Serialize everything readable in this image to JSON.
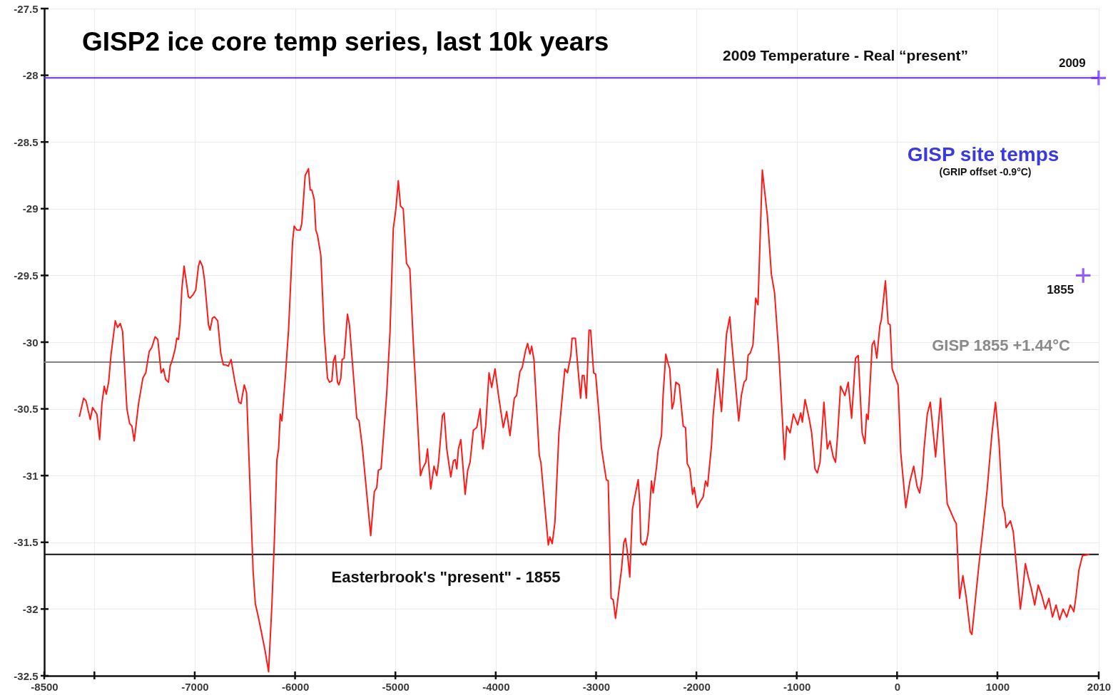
{
  "chart_data": {
    "type": "line",
    "title": "GISP2 ice core temp series, last 10k years",
    "xlim": [
      -8500,
      2010
    ],
    "ylim": [
      -32.5,
      -27.5
    ],
    "xticks": [
      -8500,
      {
        "value": -8000,
        "label": null
      },
      -7000,
      -6000,
      -5000,
      -4000,
      -3000,
      -2000,
      -1000,
      0,
      1000,
      2010
    ],
    "yticks": [
      -32.5,
      -32,
      -31.5,
      -31,
      -30.5,
      -30,
      -29.5,
      -29,
      -28.5,
      -28,
      -27.5
    ],
    "grid": true,
    "series": [
      {
        "color": "#ff1a1a",
        "x": [
          -8150,
          -8107,
          -8084,
          -8041,
          -8018,
          -7975,
          -7948,
          -7925,
          -7902,
          -7882,
          -7858,
          -7835,
          -7792,
          -7769,
          -7742,
          -7719,
          -7676,
          -7649,
          -7626,
          -7603,
          -7560,
          -7517,
          -7488,
          -7454,
          -7428,
          -7395,
          -7368,
          -7335,
          -7312,
          -7289,
          -7262,
          -7245,
          -7222,
          -7195,
          -7179,
          -7162,
          -7146,
          -7129,
          -7106,
          -7063,
          -7046,
          -7013,
          -6990,
          -6963,
          -6947,
          -6923,
          -6903,
          -6863,
          -6847,
          -6824,
          -6804,
          -6771,
          -6741,
          -6715,
          -6691,
          -6665,
          -6638,
          -6599,
          -6559,
          -6539,
          -6506,
          -6483,
          -6418,
          -6396,
          -6363,
          -6297,
          -6264,
          -6231,
          -6207,
          -6181,
          -6164,
          -6148,
          -6131,
          -6098,
          -6065,
          -6025,
          -6009,
          -5982,
          -5949,
          -5933,
          -5899,
          -5866,
          -5849,
          -5833,
          -5809,
          -5793,
          -5776,
          -5743,
          -5710,
          -5677,
          -5657,
          -5633,
          -5617,
          -5600,
          -5577,
          -5563,
          -5544,
          -5531,
          -5511,
          -5478,
          -5458,
          -5385,
          -5362,
          -5329,
          -5246,
          -5210,
          -5186,
          -5170,
          -5143,
          -5087,
          -5054,
          -5021,
          -4995,
          -4971,
          -4949,
          -4922,
          -4889,
          -4856,
          -4823,
          -4750,
          -4730,
          -4697,
          -4680,
          -4648,
          -4615,
          -4587,
          -4570,
          -4531,
          -4514,
          -4488,
          -4448,
          -4422,
          -4405,
          -4388,
          -4372,
          -4348,
          -4305,
          -4279,
          -4256,
          -4223,
          -4189,
          -4156,
          -4129,
          -4100,
          -4067,
          -4040,
          -4007,
          -3974,
          -3925,
          -3891,
          -3858,
          -3815,
          -3792,
          -3759,
          -3736,
          -3702,
          -3682,
          -3659,
          -3642,
          -3619,
          -3566,
          -3550,
          -3476,
          -3460,
          -3437,
          -3410,
          -3370,
          -3311,
          -3285,
          -3252,
          -3239,
          -3206,
          -3180,
          -3154,
          -3137,
          -3120,
          -3097,
          -3070,
          -3054,
          -3024,
          -3004,
          -2964,
          -2947,
          -2898,
          -2879,
          -2850,
          -2829,
          -2806,
          -2746,
          -2723,
          -2707,
          -2690,
          -2664,
          -2637,
          -2614,
          -2580,
          -2564,
          -2554,
          -2530,
          -2514,
          -2504,
          -2481,
          -2448,
          -2431,
          -2398,
          -2381,
          -2348,
          -2332,
          -2305,
          -2282,
          -2265,
          -2242,
          -2225,
          -2205,
          -2171,
          -2131,
          -2108,
          -2091,
          -2065,
          -2038,
          -2021,
          -1992,
          -1959,
          -1932,
          -1909,
          -1889,
          -1849,
          -1833,
          -1790,
          -1750,
          -1700,
          -1667,
          -1651,
          -1578,
          -1552,
          -1525,
          -1502,
          -1485,
          -1462,
          -1436,
          -1409,
          -1386,
          -1343,
          -1293,
          -1253,
          -1221,
          -1177,
          -1121,
          -1100,
          -1066,
          -1033,
          -990,
          -960,
          -944,
          -917,
          -877,
          -851,
          -818,
          -795,
          -768,
          -729,
          -695,
          -669,
          -636,
          -613,
          -593,
          -563,
          -520,
          -487,
          -453,
          -414,
          -387,
          -348,
          -321,
          -304,
          -288,
          -248,
          -228,
          -202,
          -172,
          -156,
          -116,
          -89,
          -69,
          -49,
          -16,
          10,
          37,
          87,
          126,
          166,
          199,
          225,
          249,
          269,
          301,
          331,
          384,
          434,
          500,
          574,
          590,
          623,
          656,
          689,
          729,
          746,
          782,
          817,
          853,
          896,
          945,
          981,
          1016,
          1052,
          1073,
          1087,
          1130,
          1158,
          1194,
          1229,
          1251,
          1279,
          1308,
          1336,
          1372,
          1407,
          1443,
          1478,
          1514,
          1549,
          1585,
          1620,
          1655,
          1691,
          1727,
          1762,
          1784,
          1812,
          1848,
          1919
        ],
        "values": [
          -30.56,
          -30.42,
          -30.44,
          -30.58,
          -30.49,
          -30.54,
          -30.73,
          -30.46,
          -30.33,
          -30.39,
          -30.3,
          -30.1,
          -29.84,
          -29.89,
          -29.86,
          -29.92,
          -30.5,
          -30.61,
          -30.63,
          -30.74,
          -30.46,
          -30.27,
          -30.23,
          -30.07,
          -30.04,
          -29.96,
          -29.98,
          -30.23,
          -30.2,
          -30.28,
          -30.3,
          -30.18,
          -30.13,
          -30.05,
          -29.97,
          -29.98,
          -29.86,
          -29.61,
          -29.43,
          -29.66,
          -29.67,
          -29.64,
          -29.61,
          -29.43,
          -29.39,
          -29.43,
          -29.53,
          -29.87,
          -29.91,
          -29.82,
          -29.81,
          -29.84,
          -30.08,
          -30.17,
          -30.17,
          -30.18,
          -30.13,
          -30.3,
          -30.45,
          -30.46,
          -30.32,
          -30.38,
          -31.72,
          -31.96,
          -32.07,
          -32.32,
          -32.47,
          -31.97,
          -31.5,
          -30.88,
          -30.8,
          -30.54,
          -30.59,
          -30.27,
          -29.91,
          -29.25,
          -29.13,
          -29.16,
          -29.16,
          -29.11,
          -28.75,
          -28.7,
          -28.86,
          -28.86,
          -28.93,
          -29.16,
          -29.2,
          -29.35,
          -29.93,
          -30.27,
          -30.3,
          -30.29,
          -30.14,
          -30.1,
          -30.3,
          -30.32,
          -30.27,
          -30.13,
          -30.12,
          -29.79,
          -29.87,
          -30.57,
          -30.59,
          -30.79,
          -31.45,
          -31.12,
          -31.09,
          -30.96,
          -30.95,
          -30.39,
          -29.93,
          -29.15,
          -29.0,
          -28.79,
          -28.98,
          -29.0,
          -29.41,
          -29.45,
          -29.98,
          -31.0,
          -30.95,
          -30.9,
          -30.8,
          -31.1,
          -30.93,
          -31.0,
          -30.9,
          -30.55,
          -30.53,
          -30.8,
          -31.01,
          -30.89,
          -30.88,
          -30.95,
          -30.8,
          -30.73,
          -31.14,
          -30.96,
          -30.9,
          -30.66,
          -30.64,
          -30.5,
          -30.8,
          -30.63,
          -30.23,
          -30.34,
          -30.2,
          -30.39,
          -30.64,
          -30.52,
          -30.7,
          -30.42,
          -30.4,
          -30.22,
          -30.19,
          -30.06,
          -30.01,
          -30.09,
          -30.03,
          -30.13,
          -30.85,
          -30.9,
          -31.52,
          -31.46,
          -31.51,
          -31.35,
          -30.68,
          -30.2,
          -30.23,
          -30.1,
          -29.97,
          -29.97,
          -30.2,
          -30.42,
          -30.25,
          -30.25,
          -30.42,
          -29.91,
          -29.91,
          -30.23,
          -30.24,
          -30.6,
          -30.79,
          -31.03,
          -31.04,
          -31.92,
          -31.93,
          -32.07,
          -31.7,
          -31.5,
          -31.47,
          -31.56,
          -31.76,
          -31.25,
          -31.16,
          -31.03,
          -31.21,
          -31.5,
          -31.52,
          -31.5,
          -31.52,
          -31.43,
          -31.04,
          -31.13,
          -30.94,
          -30.81,
          -30.7,
          -30.4,
          -30.09,
          -30.16,
          -30.2,
          -30.5,
          -30.45,
          -30.3,
          -30.32,
          -30.63,
          -30.64,
          -30.91,
          -30.95,
          -31.14,
          -31.09,
          -31.24,
          -31.19,
          -31.16,
          -31.04,
          -31.08,
          -30.77,
          -30.55,
          -30.2,
          -30.52,
          -29.94,
          -29.81,
          -29.97,
          -30.59,
          -30.4,
          -30.3,
          -30.28,
          -30.1,
          -30.08,
          -30.02,
          -29.67,
          -29.72,
          -28.71,
          -29.05,
          -29.49,
          -29.63,
          -30.1,
          -30.88,
          -30.63,
          -30.68,
          -30.54,
          -30.62,
          -30.53,
          -30.6,
          -30.43,
          -30.57,
          -30.68,
          -30.95,
          -30.98,
          -30.9,
          -30.45,
          -30.8,
          -30.74,
          -30.86,
          -30.9,
          -30.7,
          -30.33,
          -30.4,
          -30.3,
          -30.57,
          -30.12,
          -30.1,
          -30.68,
          -30.76,
          -30.54,
          -30.58,
          -30.02,
          -29.99,
          -30.12,
          -29.88,
          -29.83,
          -29.54,
          -29.86,
          -29.87,
          -30.2,
          -30.27,
          -30.32,
          -30.83,
          -31.24,
          -31.05,
          -30.93,
          -31.08,
          -31.13,
          -31.01,
          -30.8,
          -30.54,
          -30.45,
          -30.86,
          -30.42,
          -31.21,
          -31.34,
          -31.36,
          -31.92,
          -31.75,
          -31.91,
          -32.17,
          -32.19,
          -31.92,
          -31.66,
          -31.42,
          -31.12,
          -30.69,
          -30.45,
          -30.75,
          -31.23,
          -31.28,
          -31.39,
          -31.34,
          -31.42,
          -31.71,
          -32.0,
          -31.87,
          -31.66,
          -31.76,
          -31.84,
          -31.97,
          -31.82,
          -31.9,
          -32.0,
          -31.92,
          -32.06,
          -31.97,
          -32.08,
          -32.0,
          -32.06,
          -31.97,
          -32.02,
          -31.9,
          -31.71,
          -31.6,
          -31.59
        ]
      },
      {
        "type": "scatter",
        "marker": "cross",
        "color": "#6a1cf5",
        "x": [
          1855,
          2009
        ],
        "values": [
          -29.5,
          -28.02
        ]
      }
    ],
    "ref_lines": [
      {
        "axis": "y",
        "value": -28.02,
        "label": "2009 Temperature - Real “present”",
        "color": "#6a2cf0"
      },
      {
        "axis": "y",
        "value": -30.15,
        "label": "GISP 1855 +1.44°C",
        "color": "#808080"
      },
      {
        "axis": "y",
        "value": -31.59,
        "label": "Easterbrook's \"present\" - 1855",
        "color": "#111111"
      }
    ],
    "annotations": [
      "GISP site temps",
      "(GRIP offset -0.9°C)",
      {
        "text": "2009",
        "x": 2009,
        "y": -28.02
      },
      {
        "text": "1855",
        "x": 1855,
        "y": -29.5
      }
    ]
  }
}
